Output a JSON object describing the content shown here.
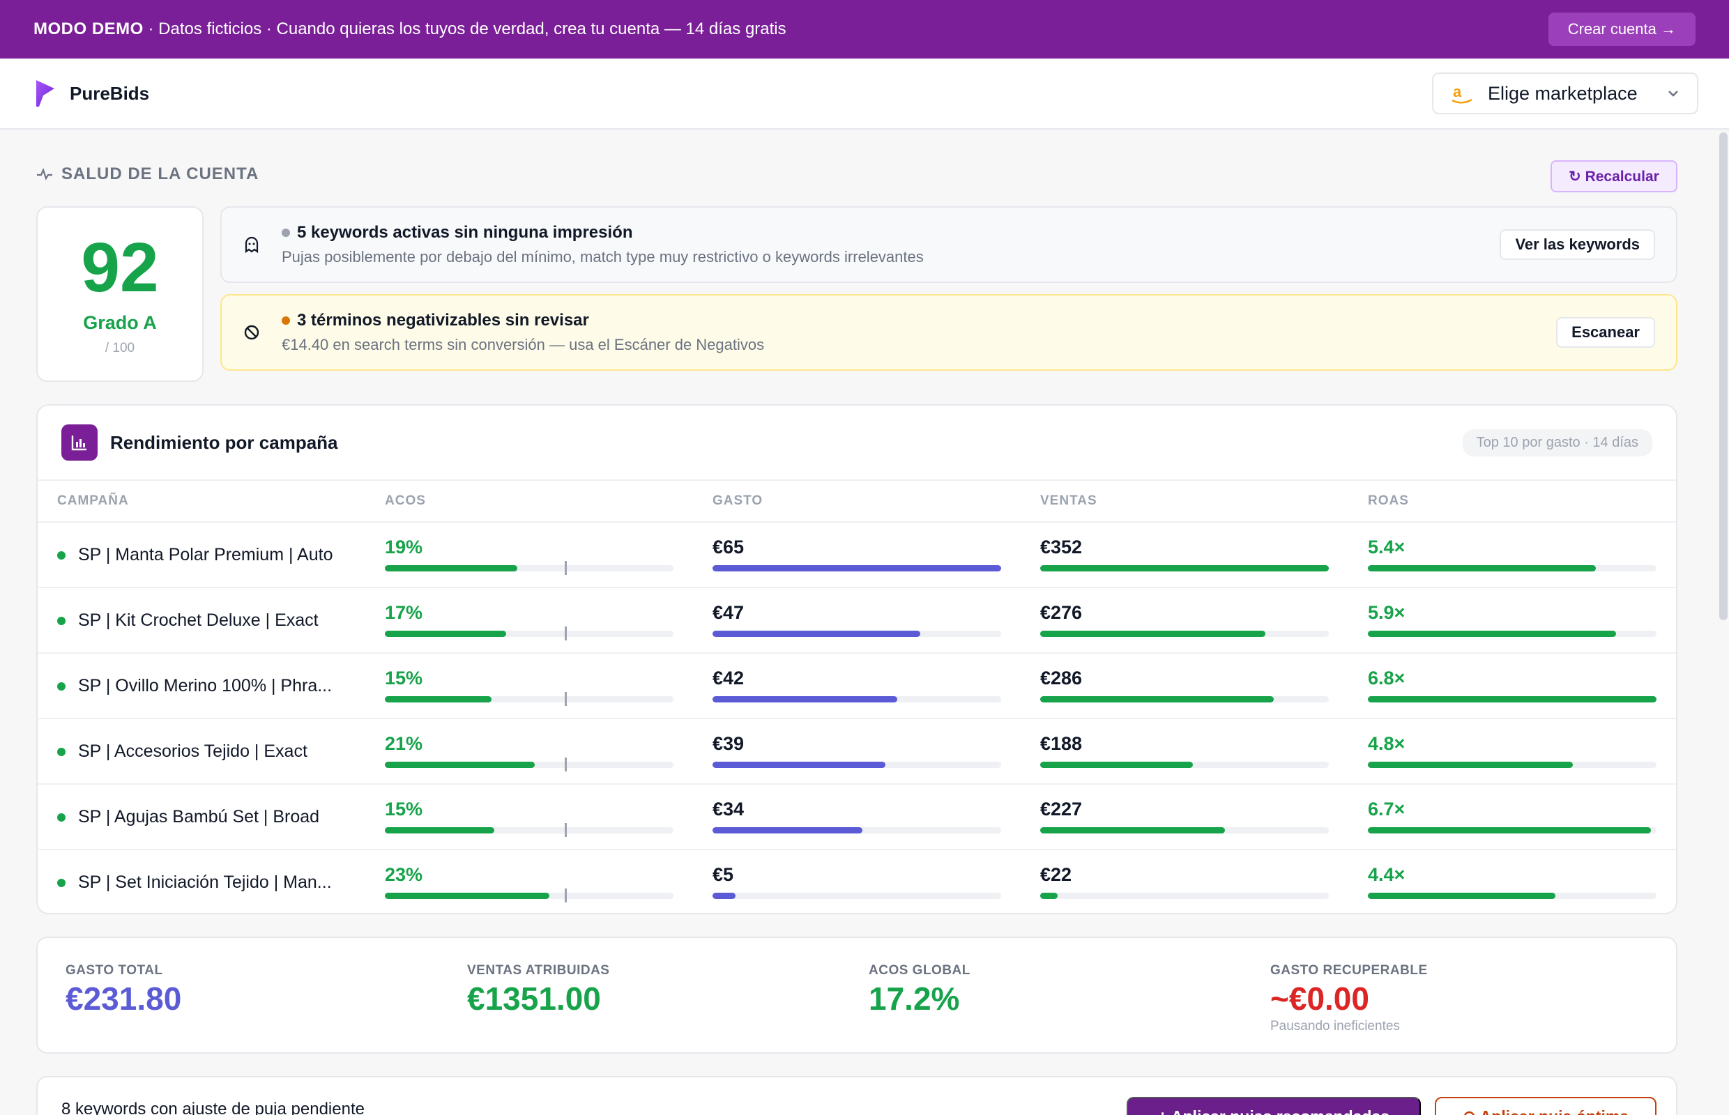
{
  "banner": {
    "strong": "MODO DEMO",
    "text": " · Datos ficticios · Cuando quieras los tuyos de verdad, crea tu cuenta — 14 días gratis",
    "button": "Crear cuenta →"
  },
  "header": {
    "brand": "PureBids",
    "marketplace_label": "Elige marketplace"
  },
  "health": {
    "title": "SALUD DE LA CUENTA",
    "recalc": "↻ Recalcular",
    "score": "92",
    "grade": "Grado A",
    "max": "/ 100"
  },
  "alerts": [
    {
      "title": "5 keywords activas sin ninguna impresión",
      "sub": "Pujas posiblemente por debajo del mínimo, match type muy restrictivo o keywords irrelevantes",
      "button": "Ver las keywords",
      "dot_color": "#9ca3af"
    },
    {
      "title": "3 términos negativizables sin revisar",
      "sub": "€14.40 en search terms sin conversión — usa el Escáner de Negativos",
      "button": "Escanear",
      "dot_color": "#d97706"
    }
  ],
  "performance": {
    "title": "Rendimiento por campaña",
    "tag": "Top 10 por gasto · 14 días",
    "columns": [
      "CAMPAÑA",
      "ACOS",
      "GASTO",
      "VENTAS",
      "ROAS"
    ],
    "rows": [
      {
        "name": "SP | Manta Polar Premium | Auto",
        "acos": "19%",
        "acos_frac": 0.46,
        "spend": "€65",
        "spend_frac": 1.0,
        "sales": "€352",
        "sales_frac": 1.0,
        "roas": "5.4×",
        "roas_frac": 0.79
      },
      {
        "name": "SP | Kit Crochet Deluxe | Exact",
        "acos": "17%",
        "acos_frac": 0.42,
        "spend": "€47",
        "spend_frac": 0.72,
        "sales": "€276",
        "sales_frac": 0.78,
        "roas": "5.9×",
        "roas_frac": 0.86
      },
      {
        "name": "SP | Ovillo Merino 100% | Phra...",
        "acos": "15%",
        "acos_frac": 0.37,
        "spend": "€42",
        "spend_frac": 0.64,
        "sales": "€286",
        "sales_frac": 0.81,
        "roas": "6.8×",
        "roas_frac": 1.0
      },
      {
        "name": "SP | Accesorios Tejido | Exact",
        "acos": "21%",
        "acos_frac": 0.52,
        "spend": "€39",
        "spend_frac": 0.6,
        "sales": "€188",
        "sales_frac": 0.53,
        "roas": "4.8×",
        "roas_frac": 0.71
      },
      {
        "name": "SP | Agujas Bambú Set | Broad",
        "acos": "15%",
        "acos_frac": 0.38,
        "spend": "€34",
        "spend_frac": 0.52,
        "sales": "€227",
        "sales_frac": 0.64,
        "roas": "6.7×",
        "roas_frac": 0.98
      },
      {
        "name": "SP | Set Iniciación Tejido | Man...",
        "acos": "23%",
        "acos_frac": 0.57,
        "spend": "€5",
        "spend_frac": 0.08,
        "sales": "€22",
        "sales_frac": 0.06,
        "roas": "4.4×",
        "roas_frac": 0.65
      }
    ]
  },
  "kpis": [
    {
      "label": "GASTO TOTAL",
      "value": "€231.80",
      "color": "#5b5bd6",
      "sub": ""
    },
    {
      "label": "VENTAS ATRIBUIDAS",
      "value": "€1351.00",
      "color": "#16a34a",
      "sub": ""
    },
    {
      "label": "ACOS GLOBAL",
      "value": "17.2%",
      "color": "#16a34a",
      "sub": ""
    },
    {
      "label": "GASTO RECUPERABLE",
      "value": "~€0.00",
      "color": "#dc2626",
      "sub": "Pausando ineficientes"
    }
  ],
  "pending": {
    "title": "8 keywords con ajuste de puja pendiente",
    "apply_recommended": "+ Aplicar pujas recomendadas",
    "apply_optimal": "⊙ Aplicar puja óptima"
  },
  "colors": {
    "brand": "#7b1f98",
    "good": "#16a34a",
    "spend": "#5b5bd6",
    "bad": "#dc2626"
  }
}
